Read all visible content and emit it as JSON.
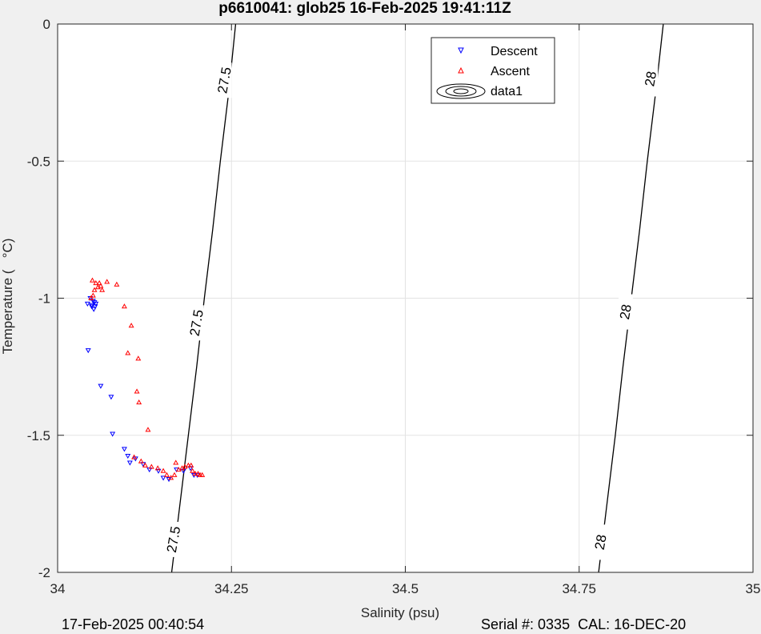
{
  "chart_data": {
    "type": "scatter",
    "title": "p6610041: glob25 16-Feb-2025 19:41:11Z",
    "xlabel": "Salinity (psu)",
    "ylabel": "Temperature (   °C)",
    "xlim": [
      34,
      35
    ],
    "ylim": [
      -2,
      0
    ],
    "xticks": [
      34,
      34.25,
      34.5,
      34.75,
      35
    ],
    "xtick_labels": [
      "34",
      "34.25",
      "34.5",
      "34.75",
      "35"
    ],
    "yticks": [
      0,
      -0.5,
      -1,
      -1.5,
      -2
    ],
    "ytick_labels": [
      "0",
      "-0.5",
      "-1",
      "-1.5",
      "-2"
    ],
    "grid": true,
    "legend_position": "top-right",
    "legend": [
      {
        "label": "Descent",
        "marker": "triangle-down",
        "color": "#0000ff"
      },
      {
        "label": "Ascent",
        "marker": "triangle-up",
        "color": "#ff0000"
      },
      {
        "label": "data1",
        "marker": "contour",
        "color": "#000000"
      }
    ],
    "series": [
      {
        "name": "Descent",
        "color": "#0000ff",
        "marker": "triangle-down",
        "points": [
          [
            34.043,
            -1.02
          ],
          [
            34.049,
            -1.03
          ],
          [
            34.052,
            -1.04
          ],
          [
            34.054,
            -1.03
          ],
          [
            34.055,
            -1.02
          ],
          [
            34.051,
            -1.01
          ],
          [
            34.047,
            -1.0
          ],
          [
            34.049,
            -1.025
          ],
          [
            34.053,
            -1.015
          ],
          [
            34.044,
            -1.19
          ],
          [
            34.062,
            -1.32
          ],
          [
            34.077,
            -1.36
          ],
          [
            34.079,
            -1.495
          ],
          [
            34.096,
            -1.55
          ],
          [
            34.101,
            -1.575
          ],
          [
            34.104,
            -1.6
          ],
          [
            34.112,
            -1.585
          ],
          [
            34.123,
            -1.605
          ],
          [
            34.132,
            -1.625
          ],
          [
            34.145,
            -1.63
          ],
          [
            34.152,
            -1.655
          ],
          [
            34.16,
            -1.66
          ],
          [
            34.171,
            -1.625
          ],
          [
            34.181,
            -1.63
          ],
          [
            34.191,
            -1.62
          ],
          [
            34.196,
            -1.645
          ],
          [
            34.201,
            -1.645
          ]
        ]
      },
      {
        "name": "Ascent",
        "color": "#ff0000",
        "marker": "triangle-up",
        "points": [
          [
            34.05,
            -0.935
          ],
          [
            34.055,
            -0.945
          ],
          [
            34.06,
            -0.945
          ],
          [
            34.064,
            -0.97
          ],
          [
            34.058,
            -0.96
          ],
          [
            34.062,
            -0.955
          ],
          [
            34.053,
            -0.97
          ],
          [
            34.048,
            -1.0
          ],
          [
            34.051,
            -0.99
          ],
          [
            34.071,
            -0.94
          ],
          [
            34.085,
            -0.95
          ],
          [
            34.096,
            -1.03
          ],
          [
            34.106,
            -1.1
          ],
          [
            34.101,
            -1.2
          ],
          [
            34.116,
            -1.22
          ],
          [
            34.114,
            -1.34
          ],
          [
            34.117,
            -1.38
          ],
          [
            34.13,
            -1.48
          ],
          [
            34.11,
            -1.58
          ],
          [
            34.12,
            -1.595
          ],
          [
            34.126,
            -1.61
          ],
          [
            34.135,
            -1.615
          ],
          [
            34.144,
            -1.62
          ],
          [
            34.152,
            -1.63
          ],
          [
            34.157,
            -1.645
          ],
          [
            34.163,
            -1.655
          ],
          [
            34.168,
            -1.645
          ],
          [
            34.17,
            -1.6
          ],
          [
            34.174,
            -1.625
          ],
          [
            34.179,
            -1.62
          ],
          [
            34.183,
            -1.615
          ],
          [
            34.188,
            -1.61
          ],
          [
            34.192,
            -1.61
          ],
          [
            34.194,
            -1.63
          ],
          [
            34.198,
            -1.64
          ],
          [
            34.202,
            -1.64
          ],
          [
            34.205,
            -1.645
          ],
          [
            34.208,
            -1.645
          ]
        ]
      }
    ],
    "contours": [
      {
        "level": "27.5",
        "points": [
          [
            34.164,
            -2
          ],
          [
            34.188,
            -1.5
          ],
          [
            34.2,
            -1.25
          ],
          [
            34.211,
            -1.0
          ],
          [
            34.223,
            -0.75
          ],
          [
            34.234,
            -0.5
          ],
          [
            34.246,
            -0.25
          ],
          [
            34.256,
            0
          ]
        ],
        "labels": [
          {
            "text": "27.5",
            "at": [
              34.167,
              -1.88
            ]
          },
          {
            "text": "27.5",
            "at": [
              34.2,
              -1.09
            ]
          },
          {
            "text": "27.5",
            "at": [
              34.24,
              -0.205
            ]
          }
        ]
      },
      {
        "level": "28",
        "points": [
          [
            34.778,
            -2
          ],
          [
            34.802,
            -1.5
          ],
          [
            34.813,
            -1.25
          ],
          [
            34.825,
            -1.0
          ],
          [
            34.837,
            -0.75
          ],
          [
            34.848,
            -0.5
          ],
          [
            34.86,
            -0.25
          ],
          [
            34.871,
            0
          ]
        ],
        "labels": [
          {
            "text": "28",
            "at": [
              34.781,
              -1.89
            ]
          },
          {
            "text": "28",
            "at": [
              34.817,
              -1.05
            ]
          },
          {
            "text": "28",
            "at": [
              34.853,
              -0.2
            ]
          }
        ]
      }
    ]
  },
  "footer": {
    "left": "17-Feb-2025 00:40:54",
    "right": "Serial #: 0335  CAL: 16-DEC-20"
  }
}
